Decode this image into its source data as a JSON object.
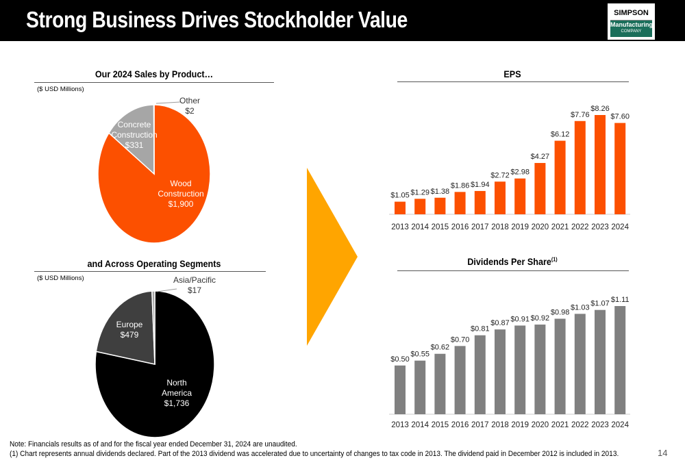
{
  "header": {
    "title": "Strong Business Drives Stockholder Value"
  },
  "logo": {
    "line1": "SIMPSON",
    "line2": "Manufacturing",
    "line3": "COMPANY"
  },
  "sales_by_product": {
    "title": "Our 2024 Sales by Product…",
    "unit": "($ USD Millions)"
  },
  "segments": {
    "title": "and Across Operating Segments",
    "unit": "($ USD Millions)"
  },
  "eps": {
    "title": "EPS"
  },
  "dividends": {
    "title": "Dividends Per Share",
    "title_sup": "(1)"
  },
  "colors": {
    "orange": "#fc5000",
    "light_gray": "#a6a6a6",
    "dark_gray": "#3f3f3f",
    "black": "#000000",
    "bar_gray": "#808080",
    "arrow": "#ffa500"
  },
  "chart_data": [
    {
      "type": "pie",
      "title": "Our 2024 Sales by Product…",
      "labels": [
        "Wood Construction",
        "Concrete Construction",
        "Other"
      ],
      "values": [
        1900,
        331,
        2
      ],
      "value_labels": [
        "$1,900",
        "$331",
        "$2"
      ],
      "label_lines": [
        [
          "Wood",
          "Construction"
        ],
        [
          "Concrete",
          "Construction"
        ],
        [
          "Other"
        ]
      ]
    },
    {
      "type": "pie",
      "title": "and Across Operating Segments",
      "labels": [
        "North America",
        "Europe",
        "Asia/Pacific"
      ],
      "values": [
        1736,
        479,
        17
      ],
      "value_labels": [
        "$1,736",
        "$479",
        "$17"
      ],
      "label_lines": [
        [
          "North",
          "America"
        ],
        [
          "Europe"
        ],
        [
          "Asia/Pacific"
        ]
      ]
    },
    {
      "type": "bar",
      "title": "EPS",
      "categories": [
        "2013",
        "2014",
        "2015",
        "2016",
        "2017",
        "2018",
        "2019",
        "2020",
        "2021",
        "2022",
        "2023",
        "2024"
      ],
      "values": [
        1.05,
        1.29,
        1.38,
        1.86,
        1.94,
        2.72,
        2.98,
        4.27,
        6.12,
        7.76,
        8.26,
        7.6
      ],
      "value_labels": [
        "$1.05",
        "$1.29",
        "$1.38",
        "$1.86",
        "$1.94",
        "$2.72",
        "$2.98",
        "$4.27",
        "$6.12",
        "$7.76",
        "$8.26",
        "$7.60"
      ],
      "ylim": [
        0,
        8.26
      ]
    },
    {
      "type": "bar",
      "title": "Dividends Per Share",
      "categories": [
        "2013",
        "2014",
        "2015",
        "2016",
        "2017",
        "2018",
        "2019",
        "2020",
        "2021",
        "2022",
        "2023",
        "2024"
      ],
      "values": [
        0.5,
        0.55,
        0.62,
        0.7,
        0.81,
        0.87,
        0.91,
        0.92,
        0.98,
        1.03,
        1.07,
        1.11
      ],
      "value_labels": [
        "$0.50",
        "$0.55",
        "$0.62",
        "$0.70",
        "$0.81",
        "$0.87",
        "$0.91",
        "$0.92",
        "$0.98",
        "$1.03",
        "$1.07",
        "$1.11"
      ],
      "ylim": [
        0,
        1.11
      ]
    }
  ],
  "footnotes": {
    "note": "Note: Financials results as of and for the fiscal year ended December 31, 2024 are unaudited.",
    "note1": "(1)  Chart represents annual dividends declared. Part of the 2013 dividend was accelerated due to uncertainty of changes to tax code in 2013. The dividend paid in December 2012 is included in 2013."
  },
  "page_number": "14"
}
